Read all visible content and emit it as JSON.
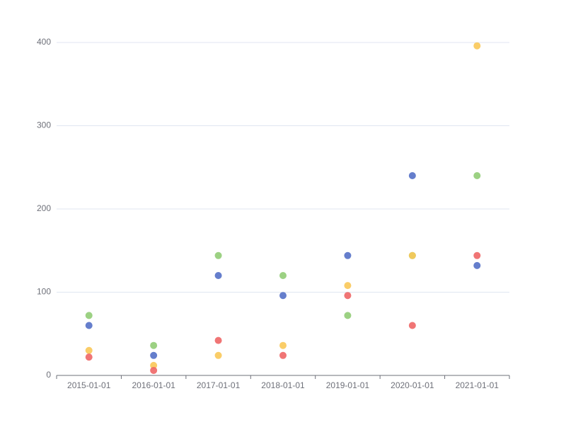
{
  "chart_data": {
    "type": "scatter",
    "categories": [
      "2015-01-01",
      "2016-01-01",
      "2017-01-01",
      "2018-01-01",
      "2019-01-01",
      "2020-01-01",
      "2021-01-01"
    ],
    "series": [
      {
        "color": "#5470c6",
        "values": [
          60,
          24,
          120,
          96,
          144,
          240,
          132
        ]
      },
      {
        "color": "#91cc75",
        "values": [
          72,
          36,
          144,
          120,
          72,
          144,
          240
        ]
      },
      {
        "color": "#fac858",
        "values": [
          30,
          12,
          24,
          36,
          108,
          144,
          396
        ]
      },
      {
        "color": "#ee6666",
        "values": [
          22,
          6,
          42,
          24,
          96,
          60,
          144
        ]
      }
    ],
    "ylim": [
      0,
      400
    ],
    "yticks": [
      0,
      100,
      200,
      300,
      400
    ],
    "grid": true
  }
}
